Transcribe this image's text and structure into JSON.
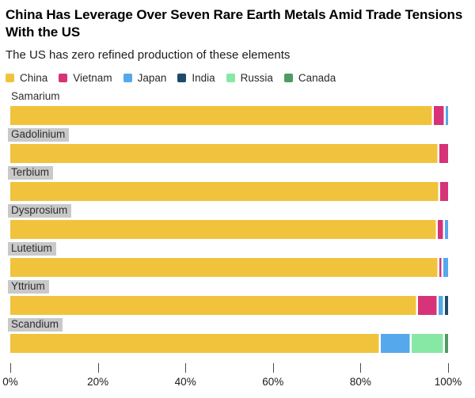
{
  "header": {
    "title": "China Has Leverage Over Seven Rare Earth Metals Amid Trade Tensions With the US",
    "subtitle": "The US has zero refined production of these elements"
  },
  "legend": [
    {
      "label": "China",
      "color": "#F1C33D"
    },
    {
      "label": "Vietnam",
      "color": "#D63378"
    },
    {
      "label": "Japan",
      "color": "#55A8EB"
    },
    {
      "label": "India",
      "color": "#1E4B69"
    },
    {
      "label": "Russia",
      "color": "#87E8A5"
    },
    {
      "label": "Canada",
      "color": "#4F9B63"
    }
  ],
  "chart_data": {
    "type": "bar",
    "orientation": "horizontal",
    "stacked": true,
    "unit": "percent of refined production",
    "categories": [
      "Samarium",
      "Gadolinium",
      "Terbium",
      "Dysprosium",
      "Lutetium",
      "Yttrium",
      "Scandium"
    ],
    "category_label_highlighted": [
      false,
      true,
      true,
      true,
      true,
      true,
      true
    ],
    "series": [
      {
        "name": "China",
        "color": "#F1C33D",
        "values": [
          96.7,
          98.0,
          98.2,
          97.6,
          98.0,
          93.2,
          84.6
        ]
      },
      {
        "name": "Vietnam",
        "color": "#D63378",
        "values": [
          2.8,
          2.0,
          1.8,
          1.7,
          1.0,
          4.7,
          0
        ]
      },
      {
        "name": "Japan",
        "color": "#55A8EB",
        "values": [
          0.5,
          0,
          0,
          0.7,
          1.0,
          1.4,
          7.1
        ]
      },
      {
        "name": "India",
        "color": "#1E4B69",
        "values": [
          0,
          0,
          0,
          0,
          0,
          0.7,
          0
        ]
      },
      {
        "name": "Russia",
        "color": "#87E8A5",
        "values": [
          0,
          0,
          0,
          0,
          0,
          0,
          7.5
        ]
      },
      {
        "name": "Canada",
        "color": "#4F9B63",
        "values": [
          0,
          0,
          0,
          0,
          0,
          0,
          0.8
        ]
      }
    ],
    "x_ticks": [
      "0%",
      "20%",
      "40%",
      "60%",
      "80%",
      "100%"
    ],
    "xlim": [
      0,
      100
    ],
    "grid": false,
    "legend_position": "top"
  }
}
